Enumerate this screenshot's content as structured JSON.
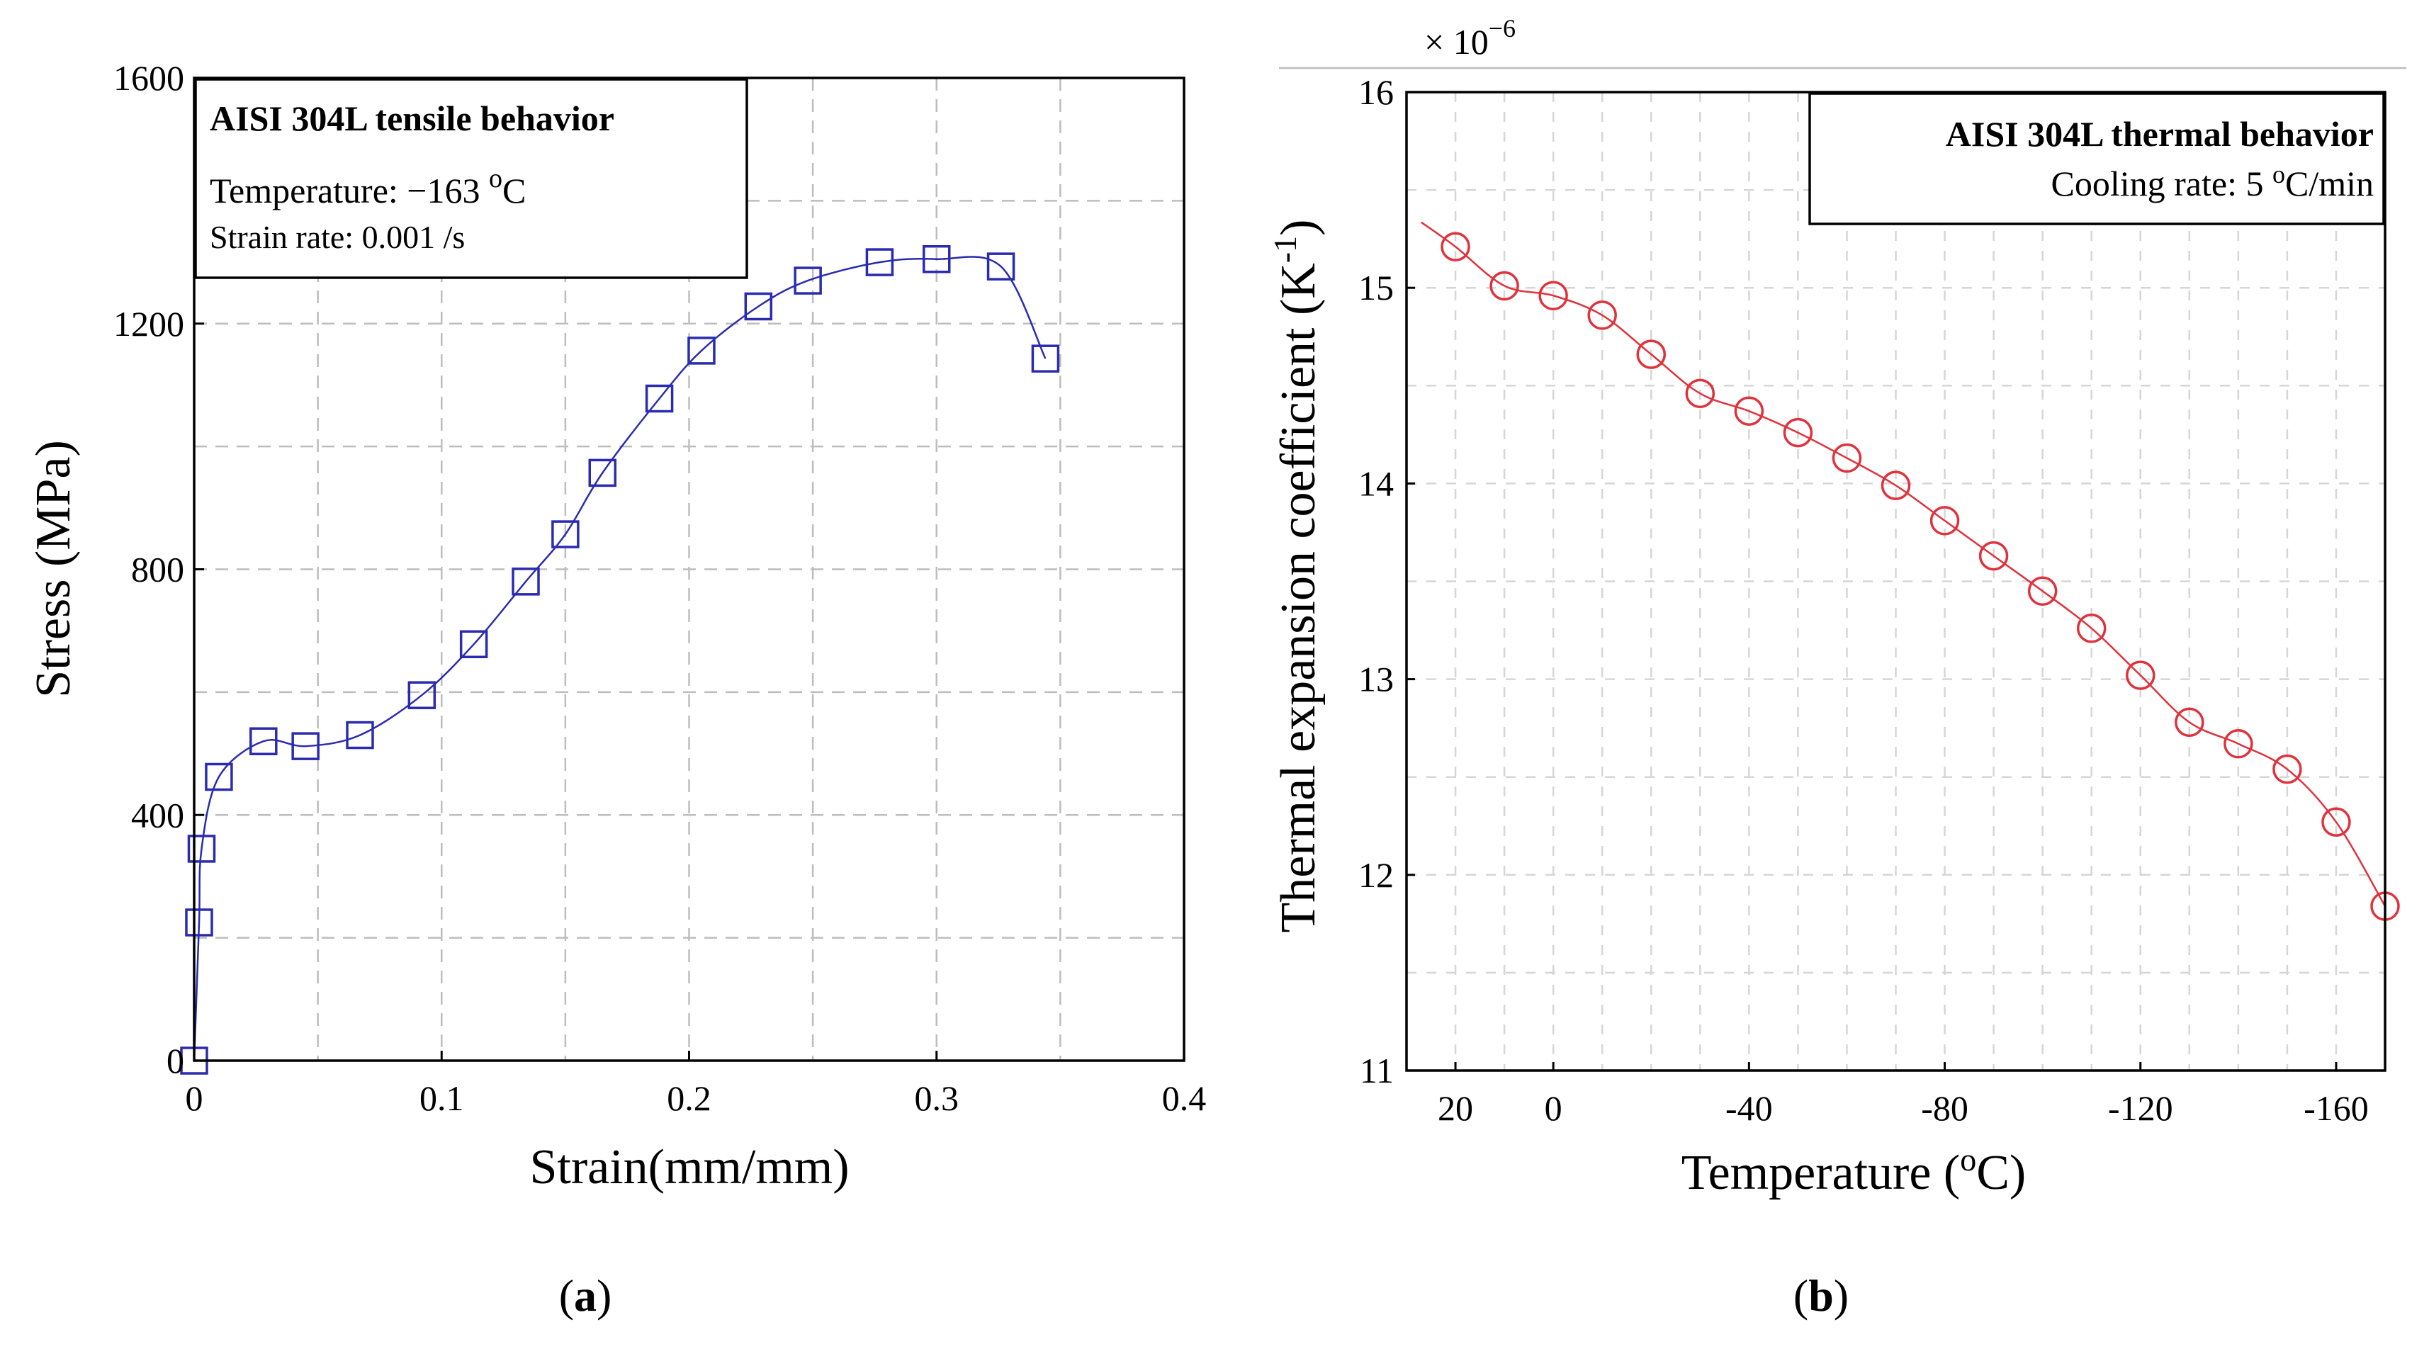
{
  "chart_data": [
    {
      "type": "line",
      "panel_label": "a",
      "title": "AISI 304L tensile behavior",
      "annotations": [
        "Temperature: −163 ",
        "o",
        "C",
        "Strain rate: 0.001 /s"
      ],
      "xlabel": "Strain(mm/mm)",
      "ylabel": "Stress (MPa)",
      "xlim": [
        0,
        0.4
      ],
      "ylim": [
        0,
        1600
      ],
      "xticks": [
        "0",
        "0.1",
        "0.2",
        "0.3",
        "0.4"
      ],
      "yticks": [
        "0",
        "400",
        "800",
        "1200",
        "1600"
      ],
      "grid": true,
      "legend_position": "top-left",
      "marker": "square",
      "color": "#2b2bb0",
      "series": [
        {
          "name": "AISI 304L tensile behavior",
          "x": [
            0.0,
            0.002,
            0.003,
            0.01,
            0.028,
            0.045,
            0.067,
            0.092,
            0.113,
            0.134,
            0.15,
            0.165,
            0.188,
            0.205,
            0.228,
            0.248,
            0.277,
            0.3,
            0.326,
            0.344
          ],
          "y": [
            0,
            225,
            345,
            462,
            520,
            512,
            530,
            595,
            678,
            780,
            857,
            957,
            1078,
            1156,
            1228,
            1270,
            1300,
            1305,
            1293,
            1143
          ]
        }
      ]
    },
    {
      "type": "line",
      "panel_label": "b",
      "title": "AISI 304L thermal behavior",
      "annotations": [
        "Cooling rate: 5 ",
        "o",
        "C/min"
      ],
      "multiplier": "× 10",
      "multiplier_exp": "−6",
      "xlabel_parts": [
        "Temperature (",
        "o",
        "C)"
      ],
      "ylabel_parts": [
        "Thermal expansion coefficient (K",
        "-1",
        ")"
      ],
      "xlim": [
        30,
        -170
      ],
      "ylim": [
        11,
        16
      ],
      "xticks": [
        "20",
        "0",
        "-40",
        "-80",
        "-120",
        "-160"
      ],
      "yticks": [
        "11",
        "12",
        "13",
        "14",
        "15",
        "16"
      ],
      "grid": true,
      "legend_position": "top-right",
      "marker": "circle",
      "color": "#e0323c",
      "series": [
        {
          "name": "AISI 304L thermal behavior",
          "x": [
            20,
            10,
            0,
            -10,
            -20,
            -30,
            -40,
            -50,
            -60,
            -70,
            -80,
            -90,
            -100,
            -110,
            -120,
            -130,
            -140,
            -150,
            -160,
            -170
          ],
          "y": [
            15.21,
            15.01,
            14.96,
            14.86,
            14.66,
            14.46,
            14.37,
            14.26,
            14.13,
            13.99,
            13.81,
            13.63,
            13.45,
            13.26,
            13.02,
            12.78,
            12.67,
            12.54,
            12.27,
            11.84
          ]
        }
      ]
    }
  ],
  "captions": {
    "a": {
      "open": "(",
      "label": "a",
      "close": ")"
    },
    "b": {
      "open": "(",
      "label": "b",
      "close": ")"
    }
  }
}
